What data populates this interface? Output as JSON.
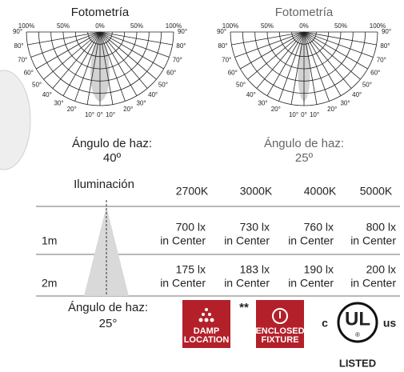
{
  "photometry": [
    {
      "title": "Fotometría",
      "percent_labels": [
        "100%",
        "50%",
        "0%",
        "50%",
        "100%"
      ],
      "angle_labels": [
        "90°",
        "80°",
        "70°",
        "60°",
        "50°",
        "40°",
        "30°",
        "20°",
        "10°",
        "0°",
        "10°",
        "20°",
        "30°",
        "40°",
        "50°",
        "60°",
        "70°",
        "80°",
        "90°"
      ],
      "beam_label": "Ángulo de haz:",
      "beam_value": "40º"
    },
    {
      "title": "Fotometría",
      "percent_labels": [
        "100%",
        "50%",
        "0%",
        "50%",
        "100%"
      ],
      "angle_labels": [
        "90°",
        "80°",
        "70°",
        "60°",
        "50°",
        "40°",
        "30°",
        "20°",
        "10°",
        "0°",
        "10°",
        "20°",
        "30°",
        "40°",
        "50°",
        "60°",
        "70°",
        "80°",
        "90°"
      ],
      "beam_label": "Ángulo de haz:",
      "beam_value": "25º"
    }
  ],
  "illumination": {
    "title": "Iluminación",
    "headers": [
      "2700K",
      "3000K",
      "4000K",
      "5000K"
    ],
    "rows": [
      {
        "distance": "1m",
        "cells": [
          [
            "700 lx",
            "in Center"
          ],
          [
            "730 lx",
            "in Center"
          ],
          [
            "760 lx",
            "in Center"
          ],
          [
            "800 lx",
            "in Center"
          ]
        ]
      },
      {
        "distance": "2m",
        "cells": [
          [
            "175 lx",
            "in Center"
          ],
          [
            "183 lx",
            "in Center"
          ],
          [
            "190 lx",
            "in Center"
          ],
          [
            "200 lx",
            "in Center"
          ]
        ]
      }
    ],
    "beam_label": "Ángulo de haz:",
    "beam_value": "25°"
  },
  "badges": {
    "damp": [
      "DAMP",
      "LOCATION"
    ],
    "note": "**",
    "enclosed": [
      "ENCLOSED",
      "FIXTURE"
    ],
    "ul": {
      "c": "c",
      "mark": "UL",
      "registered": "®",
      "us": "us",
      "listed": "LISTED"
    }
  }
}
